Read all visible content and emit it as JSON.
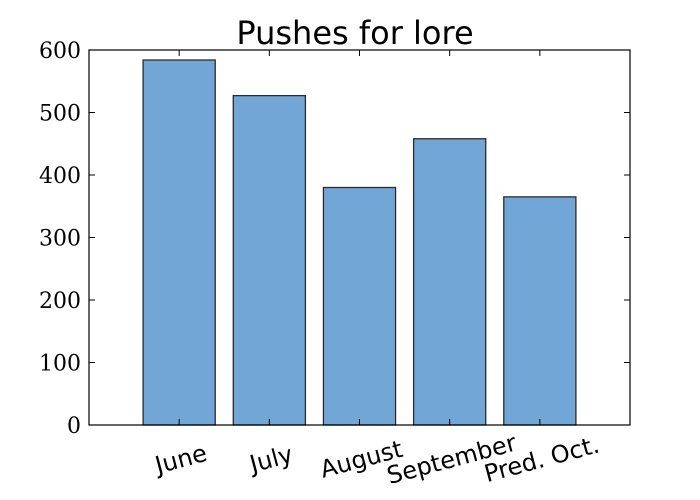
{
  "chart_data": {
    "type": "bar",
    "title": "Pushes for lore",
    "xlabel": "",
    "ylabel": "",
    "categories": [
      "June",
      "July",
      "August",
      "September",
      "Pred. Oct."
    ],
    "values": [
      584,
      527,
      380,
      458,
      365
    ],
    "ylim": [
      0,
      600
    ],
    "yticks": [
      0,
      100,
      200,
      300,
      400,
      500,
      600
    ],
    "grid": false,
    "legend": "none",
    "colors": {
      "bar_fill": "#72a6d6",
      "bar_edge": "#2b2b2b",
      "axes": "#000000"
    }
  }
}
